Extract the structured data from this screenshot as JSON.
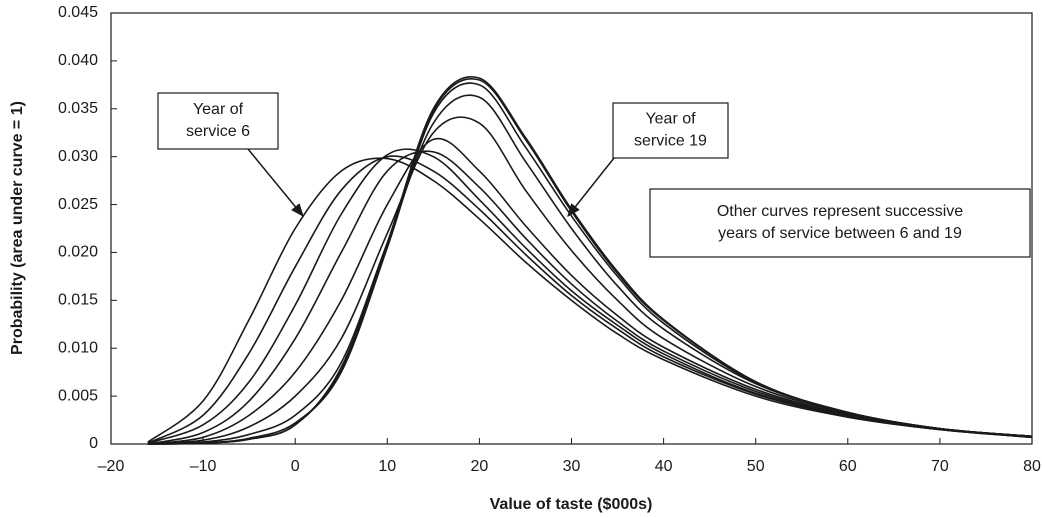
{
  "chart_data": {
    "type": "line",
    "x_label": "Value of taste ($000s)",
    "y_label": "Probability (area under curve = 1)",
    "x": [
      -16,
      -10,
      -5,
      0,
      5,
      10,
      15,
      20,
      25,
      30,
      35,
      40,
      50,
      60,
      70,
      80
    ],
    "series": [
      {
        "color": "#1a1a1a",
        "values": [
          0.0002,
          0.0045,
          0.013,
          0.0225,
          0.0285,
          0.0298,
          0.0275,
          0.0235,
          0.019,
          0.015,
          0.0115,
          0.0088,
          0.005,
          0.0028,
          0.0015,
          0.0007
        ]
      },
      {
        "color": "#1a1a1a",
        "values": [
          0.0001,
          0.003,
          0.0095,
          0.0185,
          0.0265,
          0.03,
          0.0285,
          0.0245,
          0.0198,
          0.0155,
          0.012,
          0.0091,
          0.0052,
          0.0029,
          0.0015,
          0.0007
        ]
      },
      {
        "color": "#1a1a1a",
        "values": [
          0.0001,
          0.002,
          0.0065,
          0.0145,
          0.024,
          0.0302,
          0.03,
          0.0255,
          0.0205,
          0.016,
          0.0124,
          0.0094,
          0.0053,
          0.003,
          0.0016,
          0.0007
        ]
      },
      {
        "color": "#1a1a1a",
        "values": [
          0,
          0.0012,
          0.0045,
          0.011,
          0.02,
          0.0285,
          0.0305,
          0.0268,
          0.0215,
          0.0167,
          0.0128,
          0.0097,
          0.0055,
          0.003,
          0.0016,
          0.0007
        ]
      },
      {
        "color": "#1a1a1a",
        "values": [
          0,
          0.0007,
          0.003,
          0.0075,
          0.015,
          0.025,
          0.0318,
          0.0285,
          0.0228,
          0.0176,
          0.0134,
          0.0101,
          0.0057,
          0.0031,
          0.0016,
          0.0008
        ]
      },
      {
        "color": "#1a1a1a",
        "values": [
          0,
          0.0004,
          0.0018,
          0.005,
          0.011,
          0.022,
          0.0325,
          0.0335,
          0.0265,
          0.0202,
          0.015,
          0.011,
          0.006,
          0.0032,
          0.0016,
          0.0008
        ]
      },
      {
        "color": "#1a1a1a",
        "values": [
          0,
          0.0002,
          0.001,
          0.003,
          0.0085,
          0.021,
          0.0335,
          0.0362,
          0.0295,
          0.0225,
          0.0165,
          0.012,
          0.0063,
          0.0033,
          0.0016,
          0.0008
        ]
      },
      {
        "color": "#1a1a1a",
        "values": [
          0,
          0.0001,
          0.0006,
          0.0022,
          0.0075,
          0.0205,
          0.0345,
          0.0375,
          0.031,
          0.0238,
          0.0175,
          0.0126,
          0.0064,
          0.0033,
          0.0016,
          0.0008
        ]
      },
      {
        "color": "#1a1a1a",
        "values": [
          0,
          0.0001,
          0.0005,
          0.002,
          0.0078,
          0.0208,
          0.0348,
          0.038,
          0.0318,
          0.0243,
          0.0178,
          0.0129,
          0.0065,
          0.0033,
          0.0016,
          0.0008
        ]
      },
      {
        "color": "#1a1a1a",
        "values": [
          0,
          0.0001,
          0.0005,
          0.002,
          0.008,
          0.021,
          0.035,
          0.0382,
          0.032,
          0.0245,
          0.018,
          0.013,
          0.0065,
          0.0033,
          0.0016,
          0.0008
        ]
      }
    ],
    "xlim": [
      -20,
      80
    ],
    "xticks": [
      {
        "value": -20,
        "label": "–20"
      },
      {
        "value": -10,
        "label": "–10"
      },
      0,
      10,
      20,
      30,
      40,
      50,
      60,
      70,
      80
    ],
    "ylim": [
      0,
      0.045
    ],
    "yticks": [
      0,
      0.005,
      {
        "value": 0.01,
        "label": "0.010"
      },
      0.015,
      {
        "value": 0.02,
        "label": "0.020"
      },
      0.025,
      {
        "value": 0.03,
        "label": "0.030"
      },
      0.035,
      {
        "value": 0.04,
        "label": "0.040"
      },
      0.045
    ],
    "grid": false,
    "annotations": [
      {
        "lines": [
          "Year of",
          "service 6"
        ]
      },
      {
        "lines": [
          "Year of",
          "service 19"
        ]
      },
      {
        "lines": [
          "Other curves represent successive",
          "years of service between 6 and 19"
        ]
      }
    ]
  }
}
